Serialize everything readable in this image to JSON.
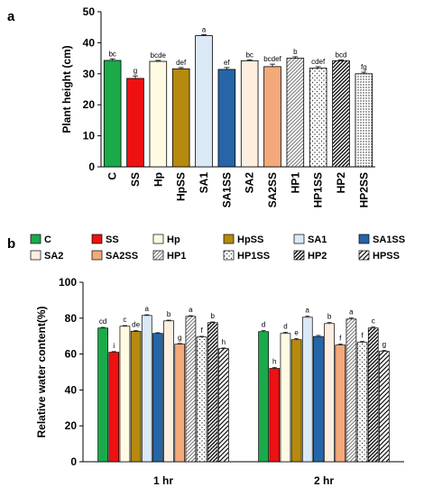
{
  "panel_labels": [
    "a",
    "b"
  ],
  "chart_data": [
    {
      "type": "bar",
      "panel": "a",
      "ylabel": "Plant height (cm)",
      "ylim": [
        0,
        50
      ],
      "yticks": [
        0,
        10,
        20,
        30,
        40,
        50
      ],
      "categories": [
        "C",
        "SS",
        "Hp",
        "HpSS",
        "SA1",
        "SA1SS",
        "SA2",
        "SA2SS",
        "HP1",
        "HP1SS",
        "HP2",
        "HP2SS"
      ],
      "values": [
        34.3,
        28.5,
        34.0,
        31.6,
        42.3,
        31.4,
        34.2,
        32.3,
        35.0,
        31.8,
        34.2,
        30.0
      ],
      "errors": [
        0.5,
        0.8,
        0.3,
        0.4,
        0.3,
        0.6,
        0.3,
        0.8,
        0.5,
        0.5,
        0.3,
        0.5
      ],
      "letters": [
        "bc",
        "g",
        "bcde",
        "def",
        "a",
        "ef",
        "bc",
        "bcdef",
        "b",
        "cdef",
        "bcd",
        "fg"
      ],
      "fills": [
        "#1aaa4a",
        "#ee1111",
        "#fffbe3",
        "#b58a0e",
        "#dbe8f6",
        "#2565a8",
        "#fdeee0",
        "#f3a97a",
        "pattern-diag-gray",
        "pattern-dots",
        "pattern-hatch-dense",
        "pattern-dots-dense"
      ],
      "grid": false
    },
    {
      "type": "bar",
      "panel": "b",
      "ylabel": "Relative water content(%)",
      "ylim": [
        0,
        100
      ],
      "yticks": [
        0,
        20,
        40,
        60,
        80,
        100
      ],
      "categories": [
        "1 hr",
        "2 hr"
      ],
      "legend": [
        "C",
        "SS",
        "Hp",
        "HpSS",
        "SA1",
        "SA1SS",
        "SA2",
        "SA2SS",
        "HP1",
        "HP1SS",
        "HP2",
        "HPSS"
      ],
      "fills": [
        "#1aaa4a",
        "#ee1111",
        "#fffbe3",
        "#b58a0e",
        "#dbe8f6",
        "#2565a8",
        "#fdeee0",
        "#f3a97a",
        "pattern-diag-gray",
        "pattern-dots",
        "pattern-hatch-dense",
        "pattern-hatch"
      ],
      "series": [
        {
          "values": [
            74.5,
            72.5
          ],
          "letters": [
            "cd",
            "d"
          ]
        },
        {
          "values": [
            61.0,
            52.0
          ],
          "letters": [
            "i",
            "h"
          ]
        },
        {
          "values": [
            75.5,
            71.5
          ],
          "letters": [
            "c",
            "d"
          ]
        },
        {
          "values": [
            72.7,
            68.0
          ],
          "letters": [
            "de",
            "e"
          ]
        },
        {
          "values": [
            81.5,
            80.5
          ],
          "letters": [
            "a",
            "a"
          ]
        },
        {
          "values": [
            71.5,
            69.8
          ],
          "letters": [
            "",
            ""
          ]
        },
        {
          "values": [
            78.5,
            77.0
          ],
          "letters": [
            "b",
            "b"
          ]
        },
        {
          "values": [
            65.5,
            65.0
          ],
          "letters": [
            "g",
            "f"
          ]
        },
        {
          "values": [
            81.0,
            79.5
          ],
          "letters": [
            "a",
            "a"
          ]
        },
        {
          "values": [
            69.5,
            66.5
          ],
          "letters": [
            "f",
            "f"
          ]
        },
        {
          "values": [
            77.5,
            74.5
          ],
          "letters": [
            "b",
            "c"
          ]
        },
        {
          "values": [
            63.0,
            61.5
          ],
          "letters": [
            "h",
            "g"
          ]
        }
      ],
      "errors": [
        0.4,
        0.6
      ],
      "grid": false
    }
  ]
}
